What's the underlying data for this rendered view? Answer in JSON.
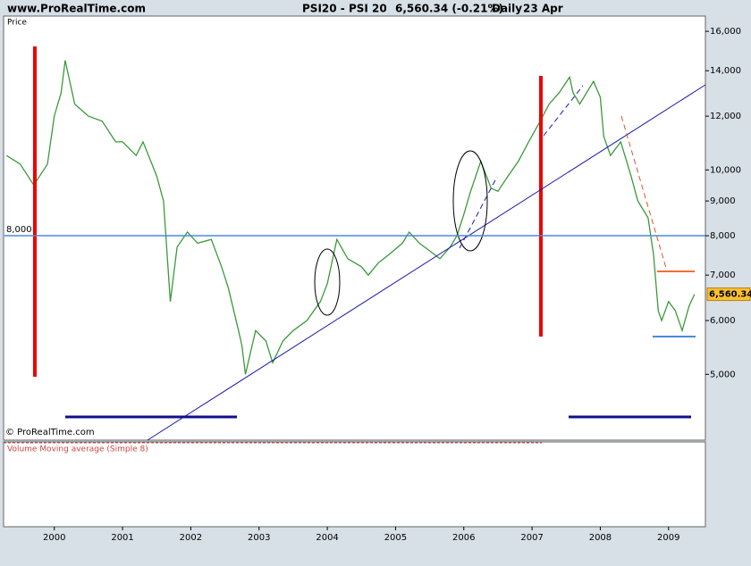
{
  "header": {
    "site": "www.ProRealTime.com",
    "symbol": "PSI20 - PSI 20",
    "quote": "6,560.34 (-0.21%)",
    "period": "Daily",
    "date": "23 Apr"
  },
  "chart_data": {
    "type": "line",
    "y_axis_label": "Price",
    "log_scale": true,
    "color": "#3a9a3a",
    "x": [
      1999.3,
      1999.5,
      1999.7,
      1999.9,
      2000.0,
      2000.1,
      2000.16,
      2000.3,
      2000.5,
      2000.7,
      2000.9,
      2001.0,
      2001.2,
      2001.3,
      2001.5,
      2001.6,
      2001.7,
      2001.8,
      2001.95,
      2002.1,
      2002.3,
      2002.45,
      2002.55,
      2002.7,
      2002.75,
      2002.8,
      2002.95,
      2003.1,
      2003.2,
      2003.35,
      2003.5,
      2003.7,
      2003.9,
      2004.0,
      2004.14,
      2004.3,
      2004.5,
      2004.6,
      2004.75,
      2004.9,
      2005.1,
      2005.2,
      2005.35,
      2005.5,
      2005.65,
      2005.8,
      2005.9,
      2006.0,
      2006.1,
      2006.25,
      2006.4,
      2006.5,
      2006.65,
      2006.8,
      2006.95,
      2007.1,
      2007.25,
      2007.4,
      2007.55,
      2007.6,
      2007.7,
      2007.8,
      2007.9,
      2008.0,
      2008.05,
      2008.15,
      2008.3,
      2008.45,
      2008.55,
      2008.7,
      2008.78,
      2008.85,
      2008.9,
      2009.0,
      2009.1,
      2009.2,
      2009.3,
      2009.38
    ],
    "values": [
      10500,
      10200,
      9500,
      10200,
      12000,
      13000,
      14500,
      12500,
      12000,
      11800,
      11000,
      11000,
      10500,
      11000,
      9800,
      9000,
      6400,
      7700,
      8100,
      7800,
      7900,
      7200,
      6700,
      5800,
      5500,
      5000,
      5800,
      5600,
      5200,
      5600,
      5800,
      6000,
      6400,
      6800,
      7900,
      7400,
      7200,
      7000,
      7300,
      7500,
      7800,
      8100,
      7800,
      7600,
      7400,
      7700,
      8000,
      8600,
      9300,
      10300,
      9400,
      9300,
      9800,
      10300,
      11000,
      11700,
      12500,
      13000,
      13700,
      13000,
      12500,
      13000,
      13500,
      12800,
      11200,
      10500,
      11000,
      9800,
      9000,
      8500,
      7500,
      6200,
      6000,
      6400,
      6200,
      5800,
      6300,
      6560.34
    ],
    "xlim": [
      1999.27,
      2009.54
    ],
    "xticks": [
      2000,
      2001,
      2002,
      2003,
      2004,
      2005,
      2006,
      2007,
      2008,
      2009
    ],
    "ylim": [
      4000,
      16850
    ],
    "yticks": [
      {
        "value": 5000,
        "label": "5,000"
      },
      {
        "value": 6000,
        "label": "6,000"
      },
      {
        "value": 7000,
        "label": "7,000"
      },
      {
        "value": 8000,
        "label": "8,000"
      },
      {
        "value": 9000,
        "label": "9,000"
      },
      {
        "value": 10000,
        "label": "10,000"
      },
      {
        "value": 12000,
        "label": "12,000"
      },
      {
        "value": 14000,
        "label": "14,000"
      },
      {
        "value": 16000,
        "label": "16,000"
      }
    ],
    "level": {
      "value": 8000,
      "label": "8,000"
    },
    "last_value": {
      "value": 6560.34,
      "label": "6,560.34"
    },
    "copyright": "© ProRealTime.com",
    "volume_label": "Volume Moving average (Simple 8)"
  }
}
